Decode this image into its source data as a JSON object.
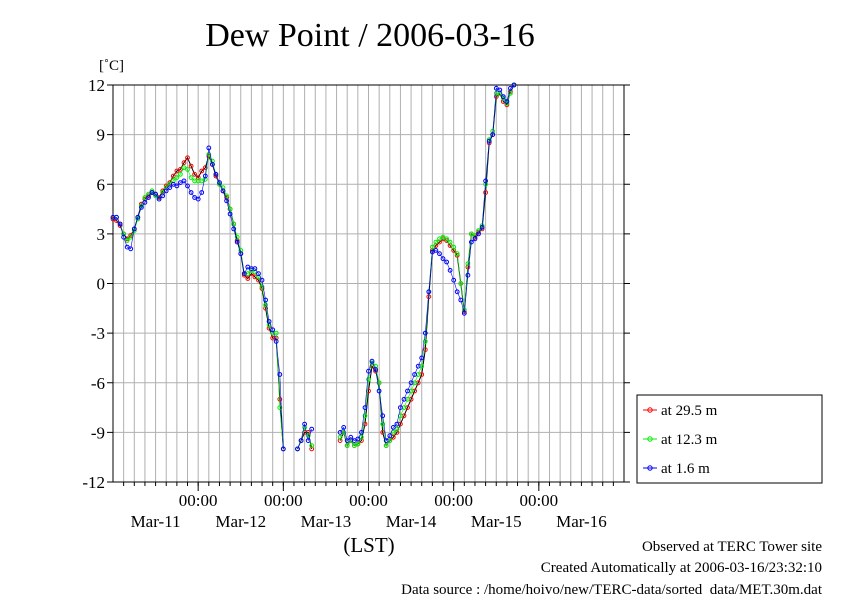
{
  "chart_data": {
    "type": "line",
    "title": "Dew Point / 2006-03-16",
    "ylabel": "[˚C]",
    "xlabel": "(LST)",
    "ylim": [
      -12,
      12
    ],
    "yticks": [
      -12,
      -9,
      -6,
      -3,
      0,
      3,
      6,
      9,
      12
    ],
    "xlim_hours": [
      0,
      144
    ],
    "x_unit": "hours from 2006-03-10 12:00 LST",
    "xticks": [
      {
        "x": 24,
        "time": "00:00",
        "date": "Mar-11"
      },
      {
        "x": 48,
        "time": "00:00",
        "date": "Mar-12"
      },
      {
        "x": 72,
        "time": "00:00",
        "date": "Mar-13"
      },
      {
        "x": 96,
        "time": "00:00",
        "date": "Mar-14"
      },
      {
        "x": 120,
        "time": "00:00",
        "date": "Mar-15"
      },
      {
        "x": 144,
        "time": "",
        "date": "Mar-16"
      }
    ],
    "grid": true,
    "legend_position": "right",
    "series": [
      {
        "name": "at 29.5 m",
        "color": "#ff0000",
        "points": [
          [
            0,
            3.9
          ],
          [
            1,
            3.8
          ],
          [
            2,
            3.5
          ],
          [
            3,
            3.0
          ],
          [
            4,
            2.7
          ],
          [
            5,
            2.9
          ],
          [
            6,
            3.3
          ],
          [
            7,
            4.0
          ],
          [
            8,
            4.8
          ],
          [
            9,
            5.1
          ],
          [
            10,
            5.3
          ],
          [
            11,
            5.5
          ],
          [
            12,
            5.4
          ],
          [
            13,
            5.2
          ],
          [
            14,
            5.6
          ],
          [
            15,
            5.9
          ],
          [
            16,
            6.1
          ],
          [
            17,
            6.5
          ],
          [
            18,
            6.8
          ],
          [
            19,
            6.9
          ],
          [
            20,
            7.3
          ],
          [
            21,
            7.6
          ],
          [
            22,
            7.1
          ],
          [
            23,
            6.6
          ],
          [
            24,
            6.4
          ],
          [
            25,
            6.8
          ],
          [
            26,
            7.0
          ],
          [
            27,
            7.7
          ],
          [
            28,
            7.2
          ],
          [
            29,
            6.5
          ],
          [
            30,
            6.0
          ],
          [
            31,
            5.6
          ],
          [
            32,
            5.2
          ],
          [
            33,
            4.5
          ],
          [
            34,
            3.6
          ],
          [
            35,
            2.6
          ],
          [
            36,
            1.8
          ],
          [
            37,
            0.5
          ],
          [
            38,
            0.3
          ],
          [
            39,
            0.6
          ],
          [
            40,
            0.4
          ],
          [
            41,
            0.2
          ],
          [
            42,
            -0.3
          ],
          [
            43,
            -1.5
          ],
          [
            44,
            -2.7
          ],
          [
            45,
            -3.3
          ],
          [
            46,
            -3.3
          ],
          [
            47,
            -7.0
          ],
          [
            48,
            -10.0
          ],
          [
            null,
            null
          ],
          [
            52,
            -10.0
          ],
          [
            53,
            -9.5
          ],
          [
            54,
            -9.0
          ],
          [
            55,
            -9.0
          ],
          [
            56,
            -10.0
          ],
          [
            null,
            null
          ],
          [
            64,
            -9.5
          ],
          [
            65,
            -9.0
          ],
          [
            66,
            -9.8
          ],
          [
            67,
            -9.5
          ],
          [
            68,
            -9.8
          ],
          [
            69,
            -9.7
          ],
          [
            70,
            -9.5
          ],
          [
            71,
            -8.5
          ],
          [
            72,
            -6.5
          ],
          [
            73,
            -5.0
          ],
          [
            74,
            -5.3
          ],
          [
            75,
            -6.0
          ],
          [
            76,
            -9.0
          ],
          [
            77,
            -9.8
          ],
          [
            78,
            -9.5
          ],
          [
            79,
            -9.3
          ],
          [
            80,
            -9.0
          ],
          [
            81,
            -8.5
          ],
          [
            82,
            -8.0
          ],
          [
            83,
            -7.5
          ],
          [
            84,
            -7.0
          ],
          [
            85,
            -6.5
          ],
          [
            86,
            -6.0
          ],
          [
            87,
            -5.5
          ],
          [
            88,
            -4.0
          ],
          [
            89,
            -0.8
          ],
          [
            90,
            2.0
          ],
          [
            91,
            2.3
          ],
          [
            92,
            2.5
          ],
          [
            93,
            2.7
          ],
          [
            94,
            2.6
          ],
          [
            95,
            2.3
          ],
          [
            96,
            2.0
          ],
          [
            97,
            1.7
          ],
          [
            98,
            0.0
          ],
          [
            99,
            -1.7
          ],
          [
            100,
            1.0
          ],
          [
            101,
            3.0
          ],
          [
            102,
            2.8
          ],
          [
            103,
            3.1
          ],
          [
            104,
            3.3
          ],
          [
            105,
            5.5
          ],
          [
            106,
            8.5
          ],
          [
            107,
            9.0
          ],
          [
            108,
            11.3
          ],
          [
            109,
            11.5
          ],
          [
            110,
            11.0
          ],
          [
            111,
            10.8
          ],
          [
            112,
            11.6
          ],
          [
            113,
            12.0
          ]
        ]
      },
      {
        "name": "at 12.3 m",
        "color": "#00ee00",
        "points": [
          [
            0,
            4.0
          ],
          [
            1,
            4.0
          ],
          [
            2,
            3.6
          ],
          [
            3,
            3.0
          ],
          [
            4,
            2.6
          ],
          [
            5,
            2.8
          ],
          [
            6,
            3.2
          ],
          [
            7,
            3.9
          ],
          [
            8,
            4.7
          ],
          [
            9,
            5.2
          ],
          [
            10,
            5.4
          ],
          [
            11,
            5.6
          ],
          [
            12,
            5.3
          ],
          [
            13,
            5.1
          ],
          [
            14,
            5.5
          ],
          [
            15,
            5.8
          ],
          [
            16,
            6.0
          ],
          [
            17,
            6.2
          ],
          [
            18,
            6.4
          ],
          [
            19,
            6.6
          ],
          [
            20,
            7.0
          ],
          [
            21,
            6.9
          ],
          [
            22,
            6.4
          ],
          [
            23,
            6.2
          ],
          [
            24,
            6.2
          ],
          [
            25,
            6.2
          ],
          [
            26,
            6.3
          ],
          [
            27,
            7.8
          ],
          [
            28,
            7.4
          ],
          [
            29,
            6.6
          ],
          [
            30,
            6.0
          ],
          [
            31,
            5.8
          ],
          [
            32,
            5.3
          ],
          [
            33,
            4.5
          ],
          [
            34,
            3.6
          ],
          [
            35,
            2.8
          ],
          [
            36,
            2.0
          ],
          [
            37,
            0.6
          ],
          [
            38,
            0.6
          ],
          [
            39,
            0.8
          ],
          [
            40,
            0.7
          ],
          [
            41,
            0.4
          ],
          [
            42,
            -0.2
          ],
          [
            43,
            -1.3
          ],
          [
            44,
            -2.5
          ],
          [
            45,
            -3.0
          ],
          [
            46,
            -3.0
          ],
          [
            47,
            -7.5
          ],
          [
            48,
            -10.0
          ],
          [
            null,
            null
          ],
          [
            52,
            -10.0
          ],
          [
            53,
            -9.5
          ],
          [
            54,
            -8.7
          ],
          [
            55,
            -9.2
          ],
          [
            56,
            -9.8
          ],
          [
            null,
            null
          ],
          [
            64,
            -9.3
          ],
          [
            65,
            -9.0
          ],
          [
            66,
            -9.8
          ],
          [
            67,
            -9.5
          ],
          [
            68,
            -9.8
          ],
          [
            69,
            -9.7
          ],
          [
            70,
            -9.3
          ],
          [
            71,
            -8.0
          ],
          [
            72,
            -5.8
          ],
          [
            73,
            -4.8
          ],
          [
            74,
            -5.0
          ],
          [
            75,
            -6.0
          ],
          [
            76,
            -8.5
          ],
          [
            77,
            -9.8
          ],
          [
            78,
            -9.5
          ],
          [
            79,
            -9.0
          ],
          [
            80,
            -8.8
          ],
          [
            81,
            -8.0
          ],
          [
            82,
            -7.5
          ],
          [
            83,
            -7.0
          ],
          [
            84,
            -6.5
          ],
          [
            85,
            -6.0
          ],
          [
            86,
            -5.5
          ],
          [
            87,
            -5.0
          ],
          [
            88,
            -3.5
          ],
          [
            89,
            -0.5
          ],
          [
            90,
            2.2
          ],
          [
            91,
            2.5
          ],
          [
            92,
            2.7
          ],
          [
            93,
            2.8
          ],
          [
            94,
            2.7
          ],
          [
            95,
            2.5
          ],
          [
            96,
            2.2
          ],
          [
            97,
            1.8
          ],
          [
            98,
            0.0
          ],
          [
            99,
            -1.6
          ],
          [
            100,
            1.2
          ],
          [
            101,
            3.0
          ],
          [
            102,
            2.9
          ],
          [
            103,
            3.2
          ],
          [
            104,
            3.5
          ],
          [
            105,
            6.0
          ],
          [
            106,
            8.7
          ],
          [
            107,
            9.2
          ],
          [
            108,
            11.5
          ],
          [
            109,
            11.5
          ],
          [
            110,
            11.2
          ],
          [
            111,
            10.9
          ],
          [
            112,
            11.5
          ],
          [
            113,
            12.0
          ]
        ]
      },
      {
        "name": "at 1.6 m",
        "color": "#0000ff",
        "points": [
          [
            0,
            4.0
          ],
          [
            1,
            4.0
          ],
          [
            2,
            3.6
          ],
          [
            3,
            2.8
          ],
          [
            4,
            2.2
          ],
          [
            5,
            2.1
          ],
          [
            6,
            3.3
          ],
          [
            7,
            4.0
          ],
          [
            8,
            4.6
          ],
          [
            9,
            4.9
          ],
          [
            10,
            5.2
          ],
          [
            11,
            5.5
          ],
          [
            12,
            5.4
          ],
          [
            13,
            5.1
          ],
          [
            14,
            5.3
          ],
          [
            15,
            5.6
          ],
          [
            16,
            5.8
          ],
          [
            17,
            6.0
          ],
          [
            18,
            5.9
          ],
          [
            19,
            6.1
          ],
          [
            20,
            6.2
          ],
          [
            21,
            5.9
          ],
          [
            22,
            5.5
          ],
          [
            23,
            5.2
          ],
          [
            24,
            5.1
          ],
          [
            25,
            5.5
          ],
          [
            26,
            6.5
          ],
          [
            27,
            8.2
          ],
          [
            28,
            7.2
          ],
          [
            29,
            6.6
          ],
          [
            30,
            6.1
          ],
          [
            31,
            5.6
          ],
          [
            32,
            5.0
          ],
          [
            33,
            4.2
          ],
          [
            34,
            3.3
          ],
          [
            35,
            2.5
          ],
          [
            36,
            1.8
          ],
          [
            37,
            0.6
          ],
          [
            38,
            1.0
          ],
          [
            39,
            0.9
          ],
          [
            40,
            0.9
          ],
          [
            41,
            0.6
          ],
          [
            42,
            0.2
          ],
          [
            43,
            -1.0
          ],
          [
            44,
            -2.3
          ],
          [
            45,
            -2.8
          ],
          [
            46,
            -3.5
          ],
          [
            47,
            -5.5
          ],
          [
            48,
            -10.0
          ],
          [
            null,
            null
          ],
          [
            52,
            -10.0
          ],
          [
            53,
            -9.5
          ],
          [
            54,
            -8.5
          ],
          [
            55,
            -9.5
          ],
          [
            56,
            -8.8
          ],
          [
            null,
            null
          ],
          [
            64,
            -9.0
          ],
          [
            65,
            -8.7
          ],
          [
            66,
            -9.5
          ],
          [
            67,
            -9.3
          ],
          [
            68,
            -9.5
          ],
          [
            69,
            -9.4
          ],
          [
            70,
            -9.0
          ],
          [
            71,
            -7.5
          ],
          [
            72,
            -5.3
          ],
          [
            73,
            -4.7
          ],
          [
            74,
            -5.2
          ],
          [
            75,
            -6.5
          ],
          [
            76,
            -8.0
          ],
          [
            77,
            -9.5
          ],
          [
            78,
            -9.2
          ],
          [
            79,
            -8.7
          ],
          [
            80,
            -8.5
          ],
          [
            81,
            -7.5
          ],
          [
            82,
            -7.0
          ],
          [
            83,
            -6.5
          ],
          [
            84,
            -6.0
          ],
          [
            85,
            -5.5
          ],
          [
            86,
            -5.0
          ],
          [
            87,
            -4.5
          ],
          [
            88,
            -3.0
          ],
          [
            89,
            -0.5
          ],
          [
            90,
            1.9
          ],
          [
            91,
            2.0
          ],
          [
            92,
            1.8
          ],
          [
            93,
            1.5
          ],
          [
            94,
            1.3
          ],
          [
            95,
            0.8
          ],
          [
            96,
            0.2
          ],
          [
            97,
            -0.5
          ],
          [
            98,
            -1.0
          ],
          [
            99,
            -1.8
          ],
          [
            100,
            0.5
          ],
          [
            101,
            2.5
          ],
          [
            102,
            2.7
          ],
          [
            103,
            3.0
          ],
          [
            104,
            3.4
          ],
          [
            105,
            6.2
          ],
          [
            106,
            8.6
          ],
          [
            107,
            9.0
          ],
          [
            108,
            11.8
          ],
          [
            109,
            11.7
          ],
          [
            110,
            11.3
          ],
          [
            111,
            11.0
          ],
          [
            112,
            11.8
          ],
          [
            113,
            12.0
          ]
        ]
      }
    ]
  },
  "footer": {
    "line1": "Observed at TERC Tower site",
    "line2": "Created Automatically at 2006-03-16/23:32:10",
    "line3": "Data source : /home/hoivo/new/TERC-data/sorted  data/MET.30m.dat"
  }
}
